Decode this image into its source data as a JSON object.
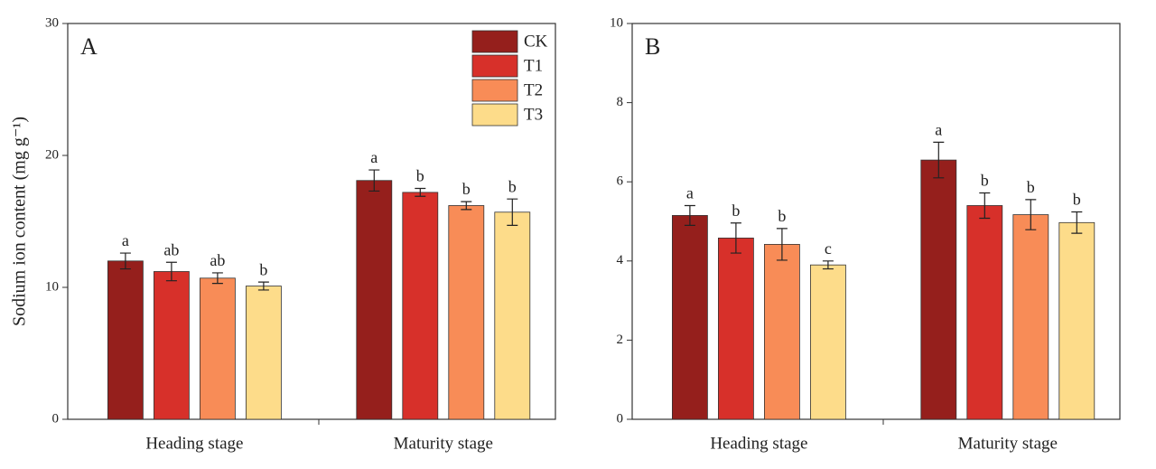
{
  "chart_data": [
    {
      "type": "bar",
      "panel": "A",
      "y_label": "Sodium ion content (mg g⁻¹)",
      "categories": [
        "Heading stage",
        "Maturity  stage"
      ],
      "series": [
        {
          "name": "CK",
          "color": "#951f1c",
          "values": [
            12.0,
            18.1
          ],
          "errors": [
            0.6,
            0.8
          ],
          "letters": [
            "a",
            "a"
          ]
        },
        {
          "name": "T1",
          "color": "#d7302a",
          "values": [
            11.2,
            17.2
          ],
          "errors": [
            0.7,
            0.3
          ],
          "letters": [
            "ab",
            "b"
          ]
        },
        {
          "name": "T2",
          "color": "#f88c57",
          "values": [
            10.7,
            16.2
          ],
          "errors": [
            0.4,
            0.3
          ],
          "letters": [
            "ab",
            "b"
          ]
        },
        {
          "name": "T3",
          "color": "#fddc8a",
          "values": [
            10.1,
            15.7
          ],
          "errors": [
            0.3,
            1.0
          ],
          "letters": [
            "b",
            "b"
          ]
        }
      ],
      "ylim": [
        0,
        30
      ],
      "yticks": [
        0,
        10,
        20,
        30
      ],
      "legend": "upper right"
    },
    {
      "type": "bar",
      "panel": "B",
      "categories": [
        "Heading stage",
        "Maturity  stage"
      ],
      "series": [
        {
          "color": "#951f1c",
          "values": [
            5.15,
            6.55
          ],
          "errors": [
            0.25,
            0.45
          ],
          "letters": [
            "a",
            "a"
          ]
        },
        {
          "color": "#d7302a",
          "values": [
            4.58,
            5.4
          ],
          "errors": [
            0.38,
            0.32
          ],
          "letters": [
            "b",
            "b"
          ]
        },
        {
          "color": "#f88c57",
          "values": [
            4.42,
            5.17
          ],
          "errors": [
            0.4,
            0.38
          ],
          "letters": [
            "b",
            "b"
          ]
        },
        {
          "color": "#fddc8a",
          "values": [
            3.9,
            4.97
          ],
          "errors": [
            0.1,
            0.27
          ],
          "letters": [
            "c",
            "b"
          ]
        }
      ],
      "ylim": [
        0,
        10
      ],
      "yticks": [
        0,
        2,
        4,
        6,
        8,
        10
      ]
    }
  ]
}
